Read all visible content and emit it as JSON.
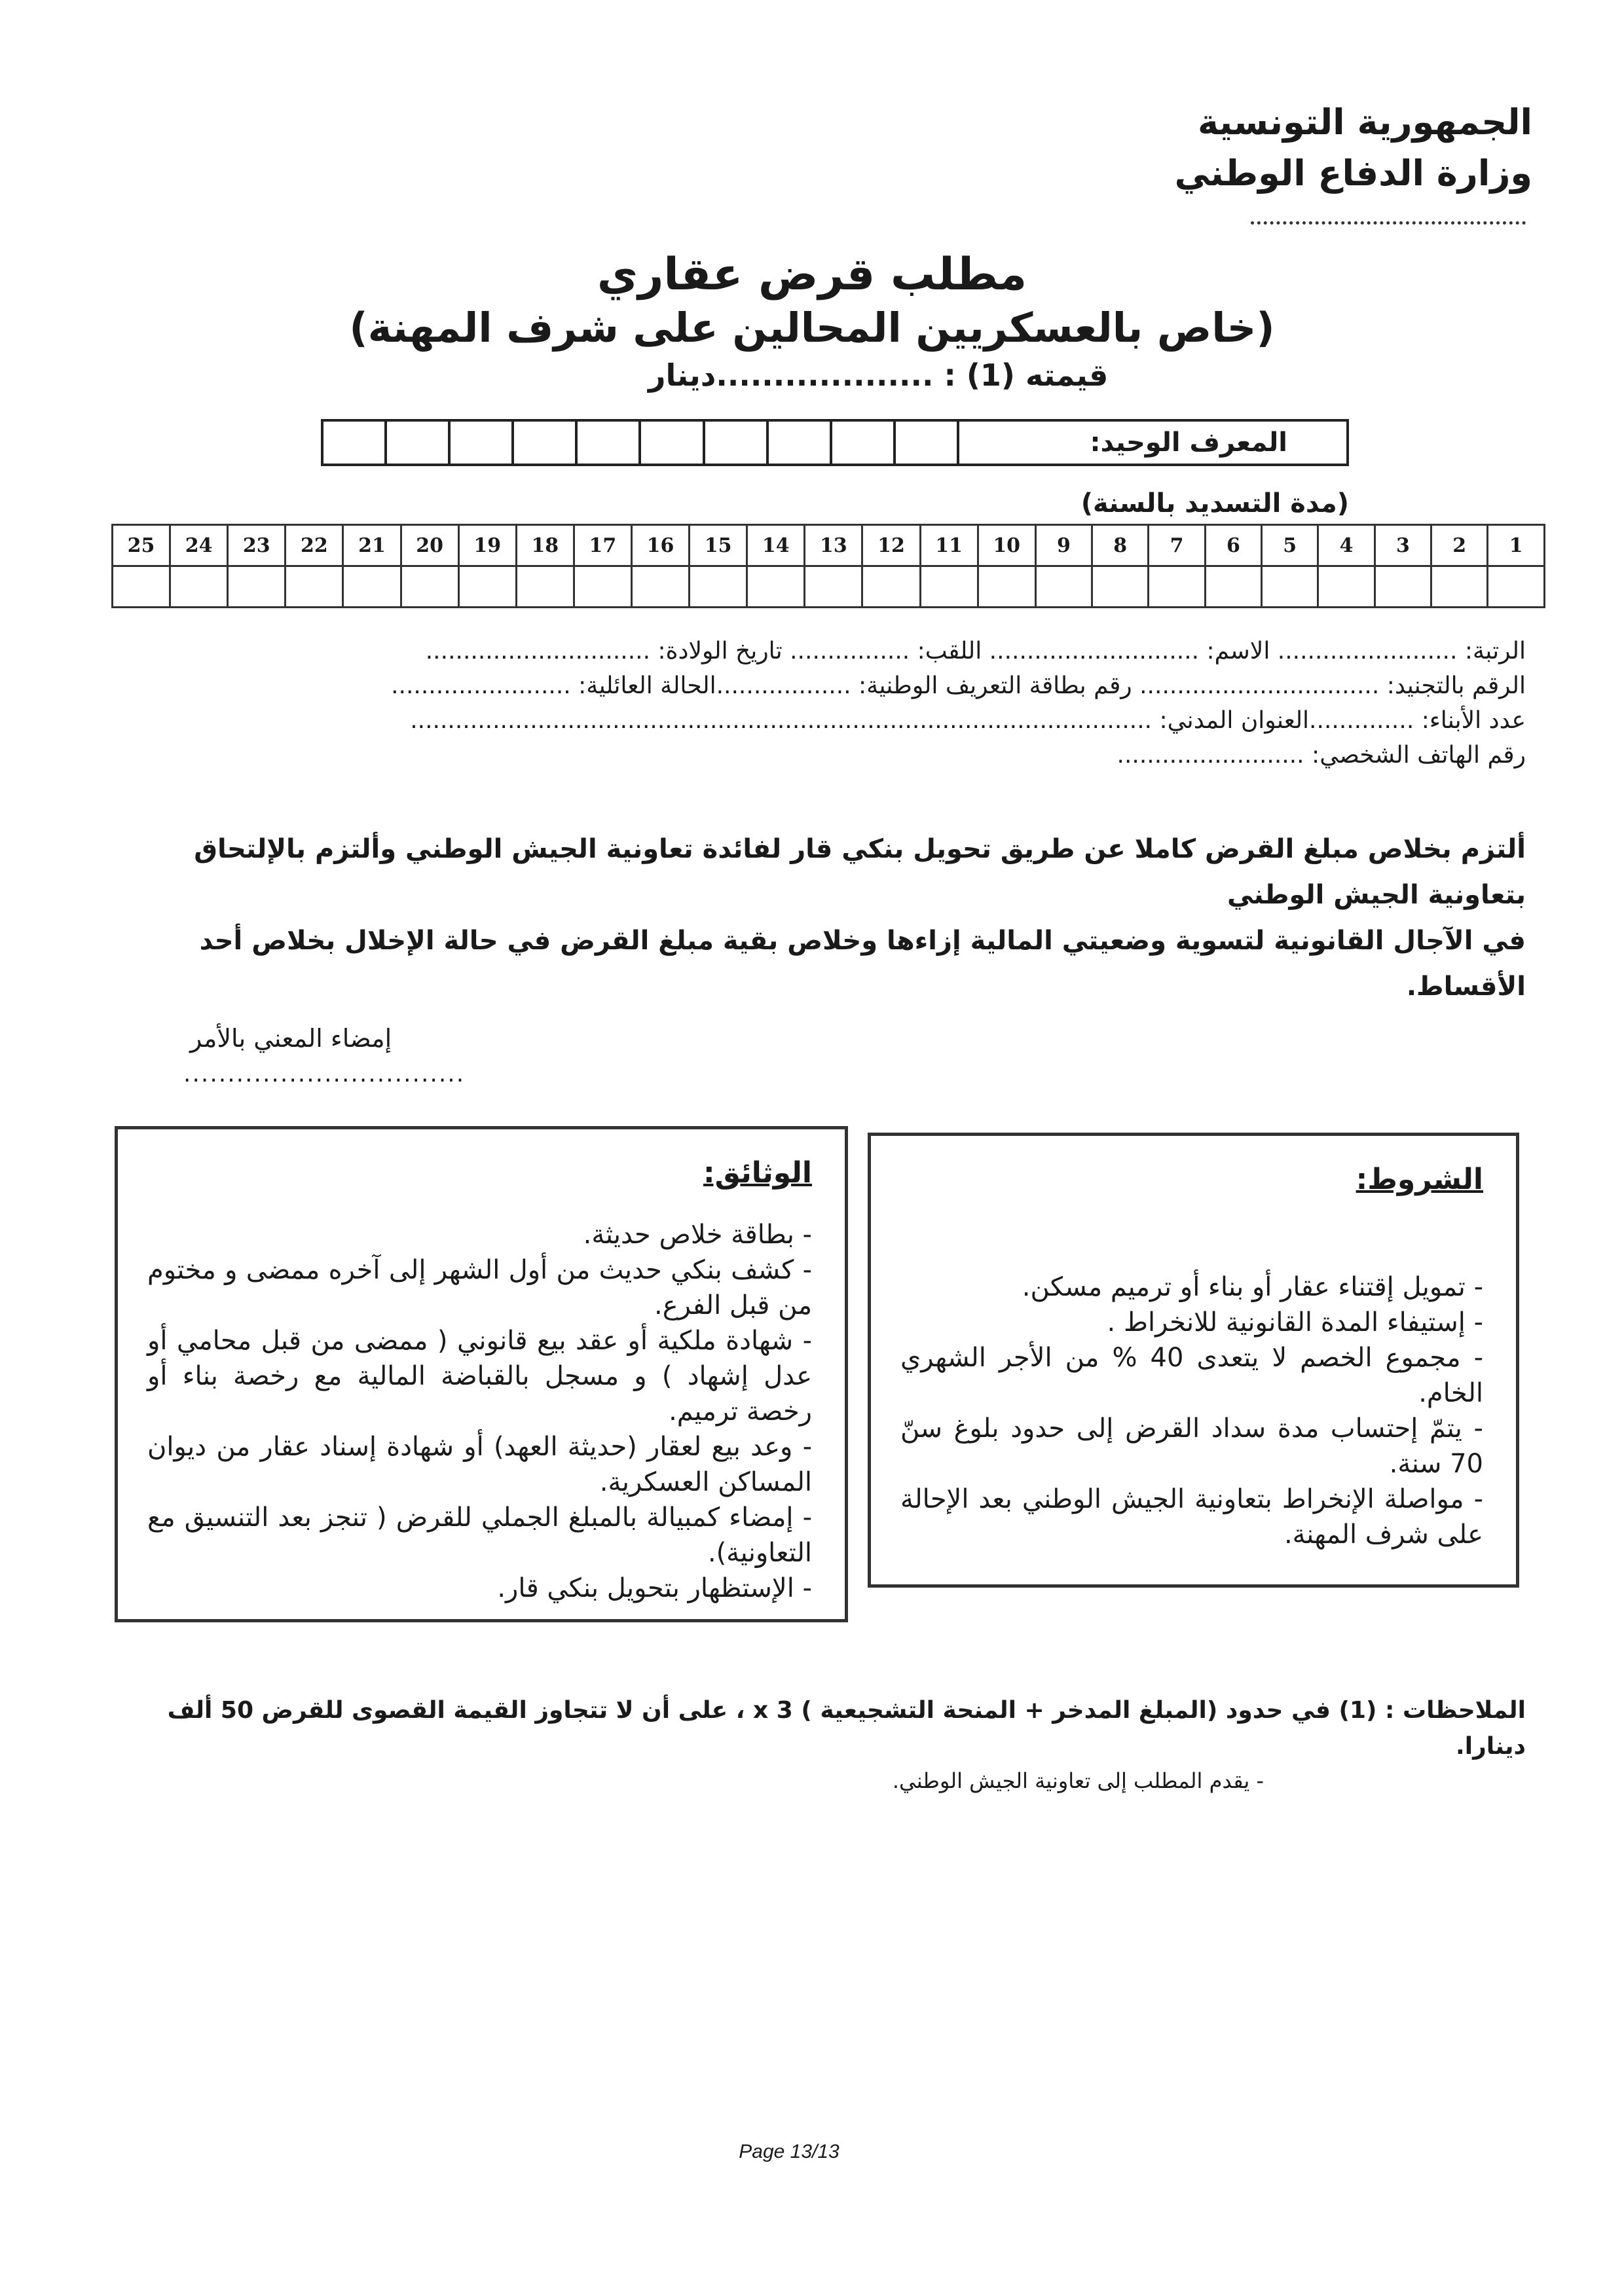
{
  "header": {
    "country": "الجمهورية التونسية",
    "ministry": "وزارة الدفاع الوطني"
  },
  "title": {
    "main": "مطلب قرض عقاري",
    "subtitle": "(خاص بالعسكريين المحالين على شرف المهنة)",
    "value_line": "قيمته (1) : ...................دينار"
  },
  "unique_id": {
    "label": "المعرف الوحيد:",
    "cells": 10
  },
  "repayment": {
    "label": "(مدة التسديد بالسنة)",
    "years": [
      "1",
      "2",
      "3",
      "4",
      "5",
      "6",
      "7",
      "8",
      "9",
      "10",
      "11",
      "12",
      "13",
      "14",
      "15",
      "16",
      "17",
      "18",
      "19",
      "20",
      "21",
      "22",
      "23",
      "24",
      "25"
    ]
  },
  "fields": {
    "line1": "الرتبة: ........................ الاسم: ............................ اللقب: ................ تاريخ الولادة: ..............................",
    "line2": "الرقم بالتجنيد: ................................ رقم بطاقة التعريف الوطنية: ..................الحالة العائلية: ........................",
    "line3": "عدد الأبناء: ..............العنوان المدني: ...................................................................................................",
    "line4": "رقم الهاتف الشخصي: ........................."
  },
  "commitment": {
    "line1": "ألتزم بخلاص مبلغ القرض كاملا عن طريق تحويل بنكي قار لفائدة تعاونية الجيش الوطني وألتزم بالإلتحاق بتعاونية الجيش الوطني",
    "line2": "في الآجال القانونية لتسوية وضعيتي المالية إزاءها وخلاص بقية مبلغ القرض في حالة الإخلال بخلاص أحد الأقساط.",
    "signature_label": "إمضاء المعني بالأمر",
    "signature_line": "................................"
  },
  "conditions": {
    "title": "الشروط:",
    "items": [
      "- تمويل إقتناء عقار أو بناء أو ترميم مسكن.",
      "- إستيفاء المدة القانونية للانخراط .",
      "- مجموع الخصم لا يتعدى 40 % من الأجر الشهري الخام.",
      "- يتمّ إحتساب مدة سداد القرض إلى حدود بلوغ سنّ 70 سنة.",
      "- مواصلة الإنخراط بتعاونية الجيش الوطني بعد الإحالة على شرف المهنة."
    ]
  },
  "documents": {
    "title": "الوثائق:",
    "items": [
      "- بطاقة خلاص حديثة.",
      "- كشف بنكي حديث من أول الشهر إلى آخره ممضى و مختوم من قبل الفرع.",
      "- شهادة ملكية أو عقد بيع قانوني ( ممضى من قبل محامي أو عدل إشهاد ) و مسجل بالقباضة المالية مع رخصة بناء أو رخصة ترميم.",
      "- وعد بيع لعقار (حديثة العهد) أو شهادة إسناد عقار من ديوان المساكن العسكرية.",
      "- إمضاء كمبيالة بالمبلغ الجملي للقرض ( تنجز بعد التنسيق مع التعاونية).",
      "- الإستظهار بتحويل بنكي قار."
    ]
  },
  "notes": {
    "line1": "الملاحظات : (1) في حدود (المبلغ المدخر + المنحة التشجيعية ) x 3 ، على أن لا تتجاوز القيمة القصوى للقرض 50 ألف دينارا.",
    "line2": "- يقدم المطلب إلى تعاونية الجيش الوطني."
  },
  "footer": {
    "page": "Page 13/13"
  }
}
